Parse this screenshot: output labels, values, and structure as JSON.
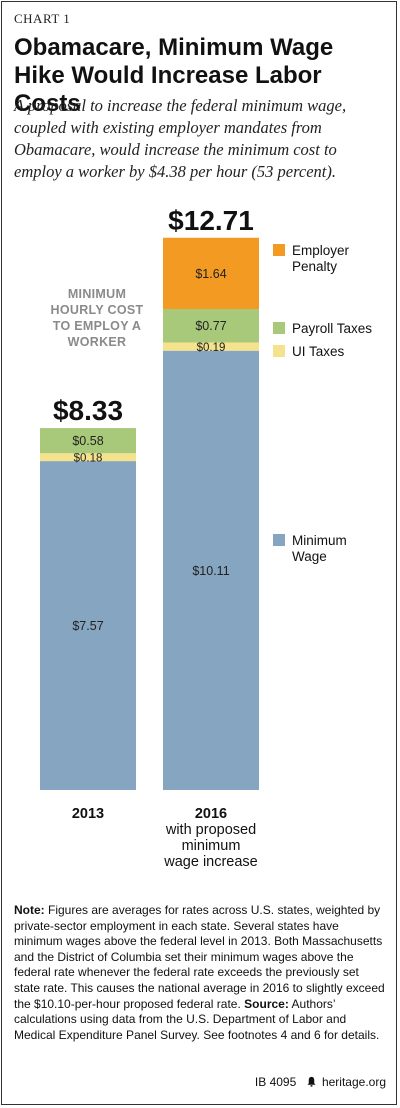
{
  "chart_label": "CHART 1",
  "title": "Obamacare, Minimum Wage Hike Would Increase Labor Costs",
  "subtitle": "A proposal to increase the federal minimum wage, coupled with existing employer mandates from Obamacare, would increase the minimum cost to employ a worker by $4.38 per hour (53 percent).",
  "chart_data": {
    "type": "bar",
    "stacked": true,
    "categories": [
      "2013",
      "2016\nwith proposed\nminimum\nwage increase"
    ],
    "totals": [
      "$8.33",
      "$12.71"
    ],
    "annotation": "MINIMUM\nHOURLY COST\nTO EMPLOY A\nWORKER",
    "legend_placement": "right",
    "series": [
      {
        "name": "Minimum\nWage",
        "color": "#86a5c1",
        "values": [
          7.57,
          10.11
        ],
        "labels": [
          "$7.57",
          "$10.11"
        ]
      },
      {
        "name": "UI Taxes",
        "color": "#f4e28c",
        "values": [
          0.18,
          0.19
        ],
        "labels": [
          "$0.18",
          "$0.19"
        ]
      },
      {
        "name": "Payroll Taxes",
        "color": "#a9c97a",
        "values": [
          0.58,
          0.77
        ],
        "labels": [
          "$0.58",
          "$0.77"
        ]
      },
      {
        "name": "Employer\nPenalty",
        "color": "#f39a22",
        "values": [
          0,
          1.64
        ],
        "labels": [
          "",
          "$1.64"
        ]
      }
    ]
  },
  "note": {
    "note_label": "Note:",
    "note_text": "Figures are averages for rates across U.S. states, weighted by private-sector employment in each state. Several states have minimum wages above the federal level in 2013. Both Massachusetts and the District of Columbia set their minimum wages above the federal rate whenever the federal rate exceeds the previously set state rate. This causes the national average in 2016 to slightly exceed the $10.10-per-hour proposed federal rate.",
    "source_label": "Source:",
    "source_text": "Authors’ calculations using data from the U.S. Department of Labor and Medical Expenditure Panel Survey. See footnotes 4 and 6 for details."
  },
  "footer": {
    "id": "IB 4095",
    "site": "heritage.org"
  }
}
